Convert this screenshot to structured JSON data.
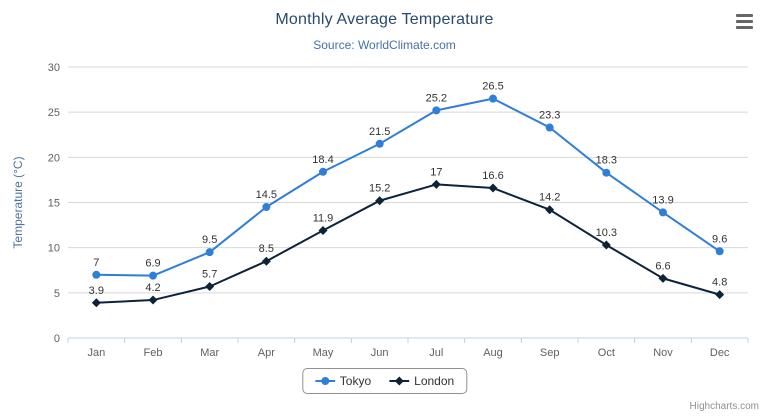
{
  "chart_data": {
    "type": "line",
    "title": "Monthly Average Temperature",
    "subtitle": "Source: WorldClimate.com",
    "categories": [
      "Jan",
      "Feb",
      "Mar",
      "Apr",
      "May",
      "Jun",
      "Jul",
      "Aug",
      "Sep",
      "Oct",
      "Nov",
      "Dec"
    ],
    "series": [
      {
        "name": "Tokyo",
        "marker": "circle",
        "color": "#2f7ed8",
        "values": [
          7,
          6.9,
          9.5,
          14.5,
          18.4,
          21.5,
          25.2,
          26.5,
          23.3,
          18.3,
          13.9,
          9.6
        ]
      },
      {
        "name": "London",
        "marker": "diamond",
        "color": "#0d233a",
        "values": [
          3.9,
          4.2,
          5.7,
          8.5,
          11.9,
          15.2,
          17,
          16.6,
          14.2,
          10.3,
          6.6,
          4.8
        ]
      }
    ],
    "xlabel": "",
    "ylabel": "Temperature (°C)",
    "ylim": [
      0,
      30
    ],
    "yticks": [
      0,
      5,
      10,
      15,
      20,
      25,
      30
    ],
    "grid": true,
    "data_labels": true,
    "legend_position": "bottom-center",
    "colors": {
      "title": "#274b6d",
      "subtitle": "#4572a7",
      "axis_label": "#606060",
      "axis_title": "#4d759e",
      "grid_line": "#d8d8d8",
      "axis_line": "#c0d0e0",
      "data_label": "#333333",
      "legend_border": "#909090",
      "legend_text": "#333333",
      "credit": "#909090"
    }
  },
  "credit": {
    "label": "Highcharts.com"
  },
  "toolbar": {
    "export_icon": "hamburger-menu"
  }
}
